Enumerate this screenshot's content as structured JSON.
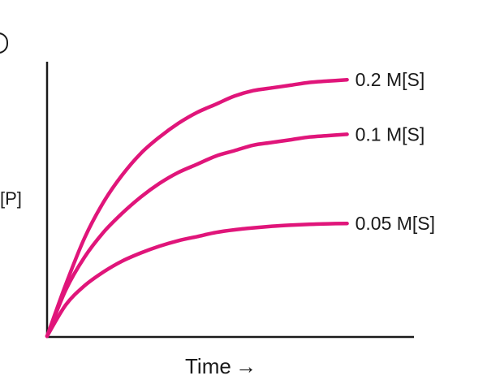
{
  "chart_data": {
    "type": "line",
    "title": "",
    "ylabel": "[P]",
    "xlabel": "Time",
    "xlabel_arrow": "→",
    "xlim": [
      0,
      10
    ],
    "ylim": [
      0,
      10
    ],
    "grid": false,
    "line_color": "#e0157a",
    "series": [
      {
        "name": "0.2 M[S]",
        "x": [
          0,
          0.5,
          1,
          1.5,
          2,
          2.5,
          3,
          3.5,
          4,
          4.5,
          5,
          5.5,
          6,
          6.5,
          7,
          7.5,
          8
        ],
        "y": [
          0,
          1.9,
          3.6,
          4.9,
          5.9,
          6.7,
          7.3,
          7.8,
          8.2,
          8.5,
          8.8,
          9.0,
          9.1,
          9.2,
          9.3,
          9.35,
          9.4
        ]
      },
      {
        "name": "0.1 M[S]",
        "x": [
          0,
          0.5,
          1,
          1.5,
          2,
          2.5,
          3,
          3.5,
          4,
          4.5,
          5,
          5.5,
          6,
          6.5,
          7,
          7.5,
          8
        ],
        "y": [
          0,
          1.7,
          2.9,
          3.8,
          4.5,
          5.1,
          5.6,
          6.0,
          6.3,
          6.6,
          6.8,
          7.0,
          7.1,
          7.2,
          7.3,
          7.35,
          7.4
        ]
      },
      {
        "name": "0.05 M[S]",
        "x": [
          0,
          0.5,
          1,
          1.5,
          2,
          2.5,
          3,
          3.5,
          4,
          4.5,
          5,
          5.5,
          6,
          6.5,
          7,
          7.5,
          8
        ],
        "y": [
          0,
          1.15,
          1.85,
          2.35,
          2.75,
          3.05,
          3.3,
          3.5,
          3.65,
          3.8,
          3.9,
          3.97,
          4.03,
          4.07,
          4.1,
          4.12,
          4.13
        ]
      }
    ]
  }
}
